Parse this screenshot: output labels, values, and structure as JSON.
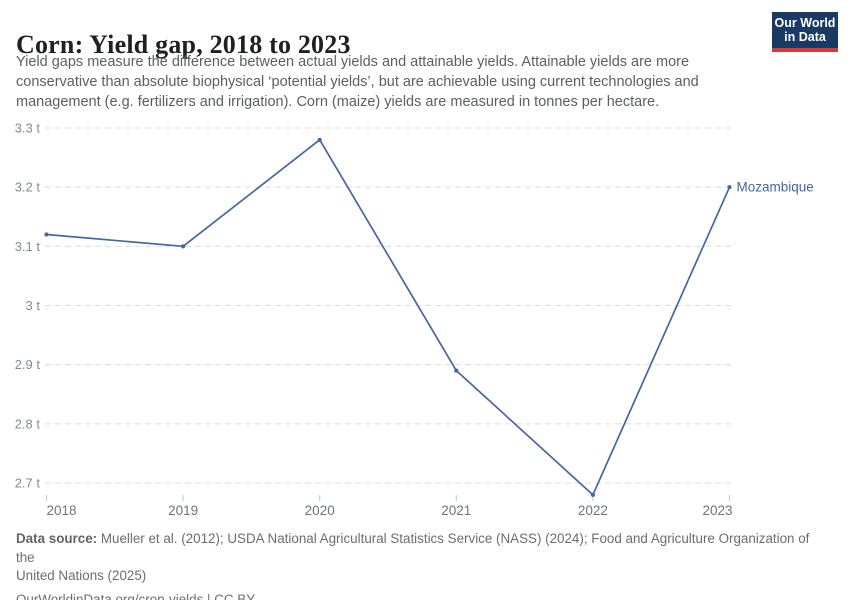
{
  "chart_data": {
    "type": "line",
    "title": "Corn: Yield gap, 2018 to 2023",
    "subtitle_lines": [
      "Yield gaps measure the difference between actual yields and attainable yields. Attainable yields are more",
      "conservative than absolute biophysical ‘potential yields’, but are achievable using current technologies and",
      "management (e.g. fertilizers and irrigation). Corn (maize) yields are measured in tonnes per hectare."
    ],
    "x": [
      2018,
      2019,
      2020,
      2021,
      2022,
      2023
    ],
    "series": [
      {
        "name": "Mozambique",
        "color": "#4466a3",
        "values": [
          3.12,
          3.1,
          3.28,
          2.89,
          2.68,
          3.2
        ]
      }
    ],
    "xlabel": "",
    "ylabel": "",
    "yticks": [
      3.3,
      3.2,
      3.1,
      3,
      2.9,
      2.8,
      2.7
    ],
    "ytick_suffix": " t",
    "ylim": [
      2.7,
      3.3
    ],
    "grid": "horizontal-dashed",
    "legend_position": "end-of-line-label"
  },
  "logo": {
    "line1": "Our World",
    "line2": "in Data"
  },
  "colors": {
    "logo_bg": "#1a3a63",
    "logo_stripe": "#d53b32",
    "series_blue": "#4466a3"
  },
  "footer": {
    "source_label": "Data source:",
    "source_line1": " Mueller et al. (2012); USDA National Agricultural Statistics Service (NASS) (2024); Food and Agriculture Organization of the",
    "source_line2": "United Nations (2025)",
    "link_text": "OurWorldinData.org/crop-yields | CC BY"
  }
}
